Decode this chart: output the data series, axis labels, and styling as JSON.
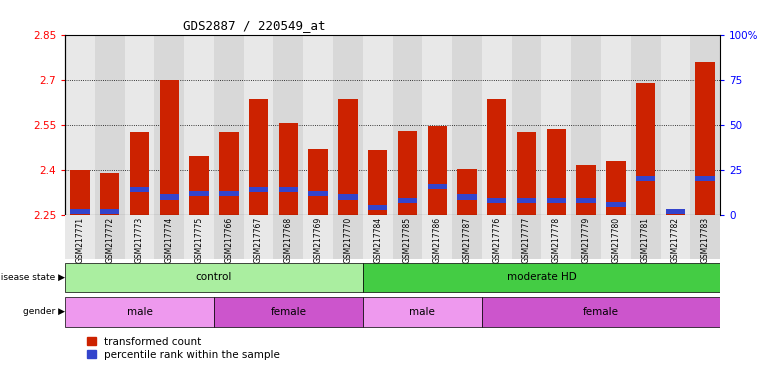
{
  "title": "GDS2887 / 220549_at",
  "samples": [
    "GSM217771",
    "GSM217772",
    "GSM217773",
    "GSM217774",
    "GSM217775",
    "GSM217766",
    "GSM217767",
    "GSM217768",
    "GSM217769",
    "GSM217770",
    "GSM217784",
    "GSM217785",
    "GSM217786",
    "GSM217787",
    "GSM217776",
    "GSM217777",
    "GSM217778",
    "GSM217779",
    "GSM217780",
    "GSM217781",
    "GSM217782",
    "GSM217783"
  ],
  "transformed_count": [
    2.4,
    2.39,
    2.527,
    2.7,
    2.447,
    2.527,
    2.637,
    2.557,
    2.47,
    2.637,
    2.467,
    2.53,
    2.547,
    2.402,
    2.635,
    2.527,
    2.537,
    2.415,
    2.43,
    2.688,
    2.262,
    2.76
  ],
  "percentile_rank": [
    2.0,
    2.0,
    14.0,
    10.0,
    12.0,
    12.0,
    14.0,
    14.0,
    12.0,
    10.0,
    4.0,
    8.0,
    16.0,
    10.0,
    8.0,
    8.0,
    8.0,
    8.0,
    6.0,
    20.0,
    2.0,
    20.0
  ],
  "ylim_left": [
    2.25,
    2.85
  ],
  "ylim_right": [
    0,
    100
  ],
  "yticks_left": [
    2.25,
    2.4,
    2.55,
    2.7,
    2.85
  ],
  "yticks_right": [
    0,
    25,
    50,
    75,
    100
  ],
  "bar_color": "#cc2200",
  "blue_color": "#3344cc",
  "col_bg_odd": "#e8e8e8",
  "col_bg_even": "#d8d8d8",
  "disease_state_groups": [
    {
      "label": "control",
      "start": 0,
      "end": 10,
      "color": "#aaeea0"
    },
    {
      "label": "moderate HD",
      "start": 10,
      "end": 22,
      "color": "#44cc44"
    }
  ],
  "gender_groups": [
    {
      "label": "male",
      "start": 0,
      "end": 5,
      "color": "#ee99ee"
    },
    {
      "label": "female",
      "start": 5,
      "end": 10,
      "color": "#cc55cc"
    },
    {
      "label": "male",
      "start": 10,
      "end": 14,
      "color": "#ee99ee"
    },
    {
      "label": "female",
      "start": 14,
      "end": 22,
      "color": "#cc55cc"
    }
  ],
  "bar_width": 0.65
}
